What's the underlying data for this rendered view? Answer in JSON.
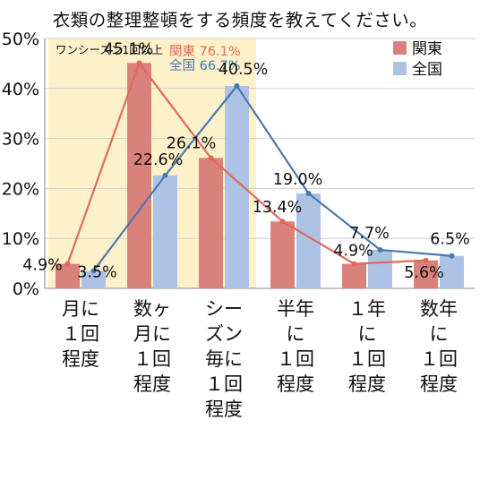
{
  "chart_data": {
    "type": "bar",
    "title": "衣類の整理整頓をする頻度を教えてください。",
    "categories": [
      "月に１回程度",
      "数ヶ月に１回程度",
      "シーズン毎に１回程度",
      "半年に１回程度",
      "１年に１回程度",
      "数年に１回程度"
    ],
    "category_lines": [
      [
        "月に",
        "１回",
        "程度"
      ],
      [
        "数ヶ月に",
        "１回",
        "程度"
      ],
      [
        "シーズン毎に",
        "１回",
        "程度"
      ],
      [
        "半年に",
        "１回",
        "程度"
      ],
      [
        "１年に",
        "１回",
        "程度"
      ],
      [
        "数年に",
        "１回",
        "程度"
      ]
    ],
    "series": [
      {
        "name": "関東",
        "color": "#d9827c",
        "values": [
          4.9,
          45.1,
          26.1,
          13.4,
          4.9,
          5.6
        ]
      },
      {
        "name": "全国",
        "color": "#adc3e6",
        "values": [
          3.5,
          22.6,
          40.5,
          19.0,
          7.7,
          6.5
        ]
      }
    ],
    "line_colors": {
      "関東": "#e06a5e",
      "全国": "#4a78b0"
    },
    "ylim": [
      0,
      50
    ],
    "yticks": [
      0,
      10,
      20,
      30,
      40,
      50
    ],
    "ytick_labels": [
      "0%",
      "10%",
      "20%",
      "30%",
      "40%",
      "50%"
    ],
    "grid": true,
    "legend": "top-right",
    "highlight": {
      "label": "ワンシーズン1回以上",
      "color": "#fdf1c9",
      "from_category": 0,
      "to_category": 2,
      "totals": [
        {
          "text": "関東 76.1%",
          "color": "#e06a5e"
        },
        {
          "text": "全国 66.7%",
          "color": "#4a78b0"
        }
      ]
    }
  }
}
